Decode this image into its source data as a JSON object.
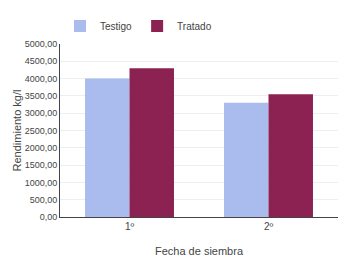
{
  "chart_data": {
    "type": "bar",
    "categories": [
      "1º",
      "2º"
    ],
    "series": [
      {
        "name": "Testigo",
        "color": "#aabcee",
        "values": [
          4000,
          3300
        ]
      },
      {
        "name": "Tratado",
        "color": "#8b2252",
        "values": [
          4300,
          3550
        ]
      }
    ],
    "xlabel": "Fecha de siembra",
    "ylabel": "Rendimiento kg/l",
    "ylim": [
      0,
      5000
    ],
    "yticks": [
      {
        "value": 0,
        "label": "0,00"
      },
      {
        "value": 500,
        "label": "500,00"
      },
      {
        "value": 1000,
        "label": "1000,00"
      },
      {
        "value": 1500,
        "label": "1500,00"
      },
      {
        "value": 2000,
        "label": "2000,00"
      },
      {
        "value": 2500,
        "label": "2500,00"
      },
      {
        "value": 3000,
        "label": "3000,00"
      },
      {
        "value": 3500,
        "label": "3500,00"
      },
      {
        "value": 4000,
        "label": "4000,00"
      },
      {
        "value": 4500,
        "label": "4500,00"
      },
      {
        "value": 5000,
        "label": "5000,00"
      }
    ],
    "grid": true,
    "legend": "upper left"
  }
}
